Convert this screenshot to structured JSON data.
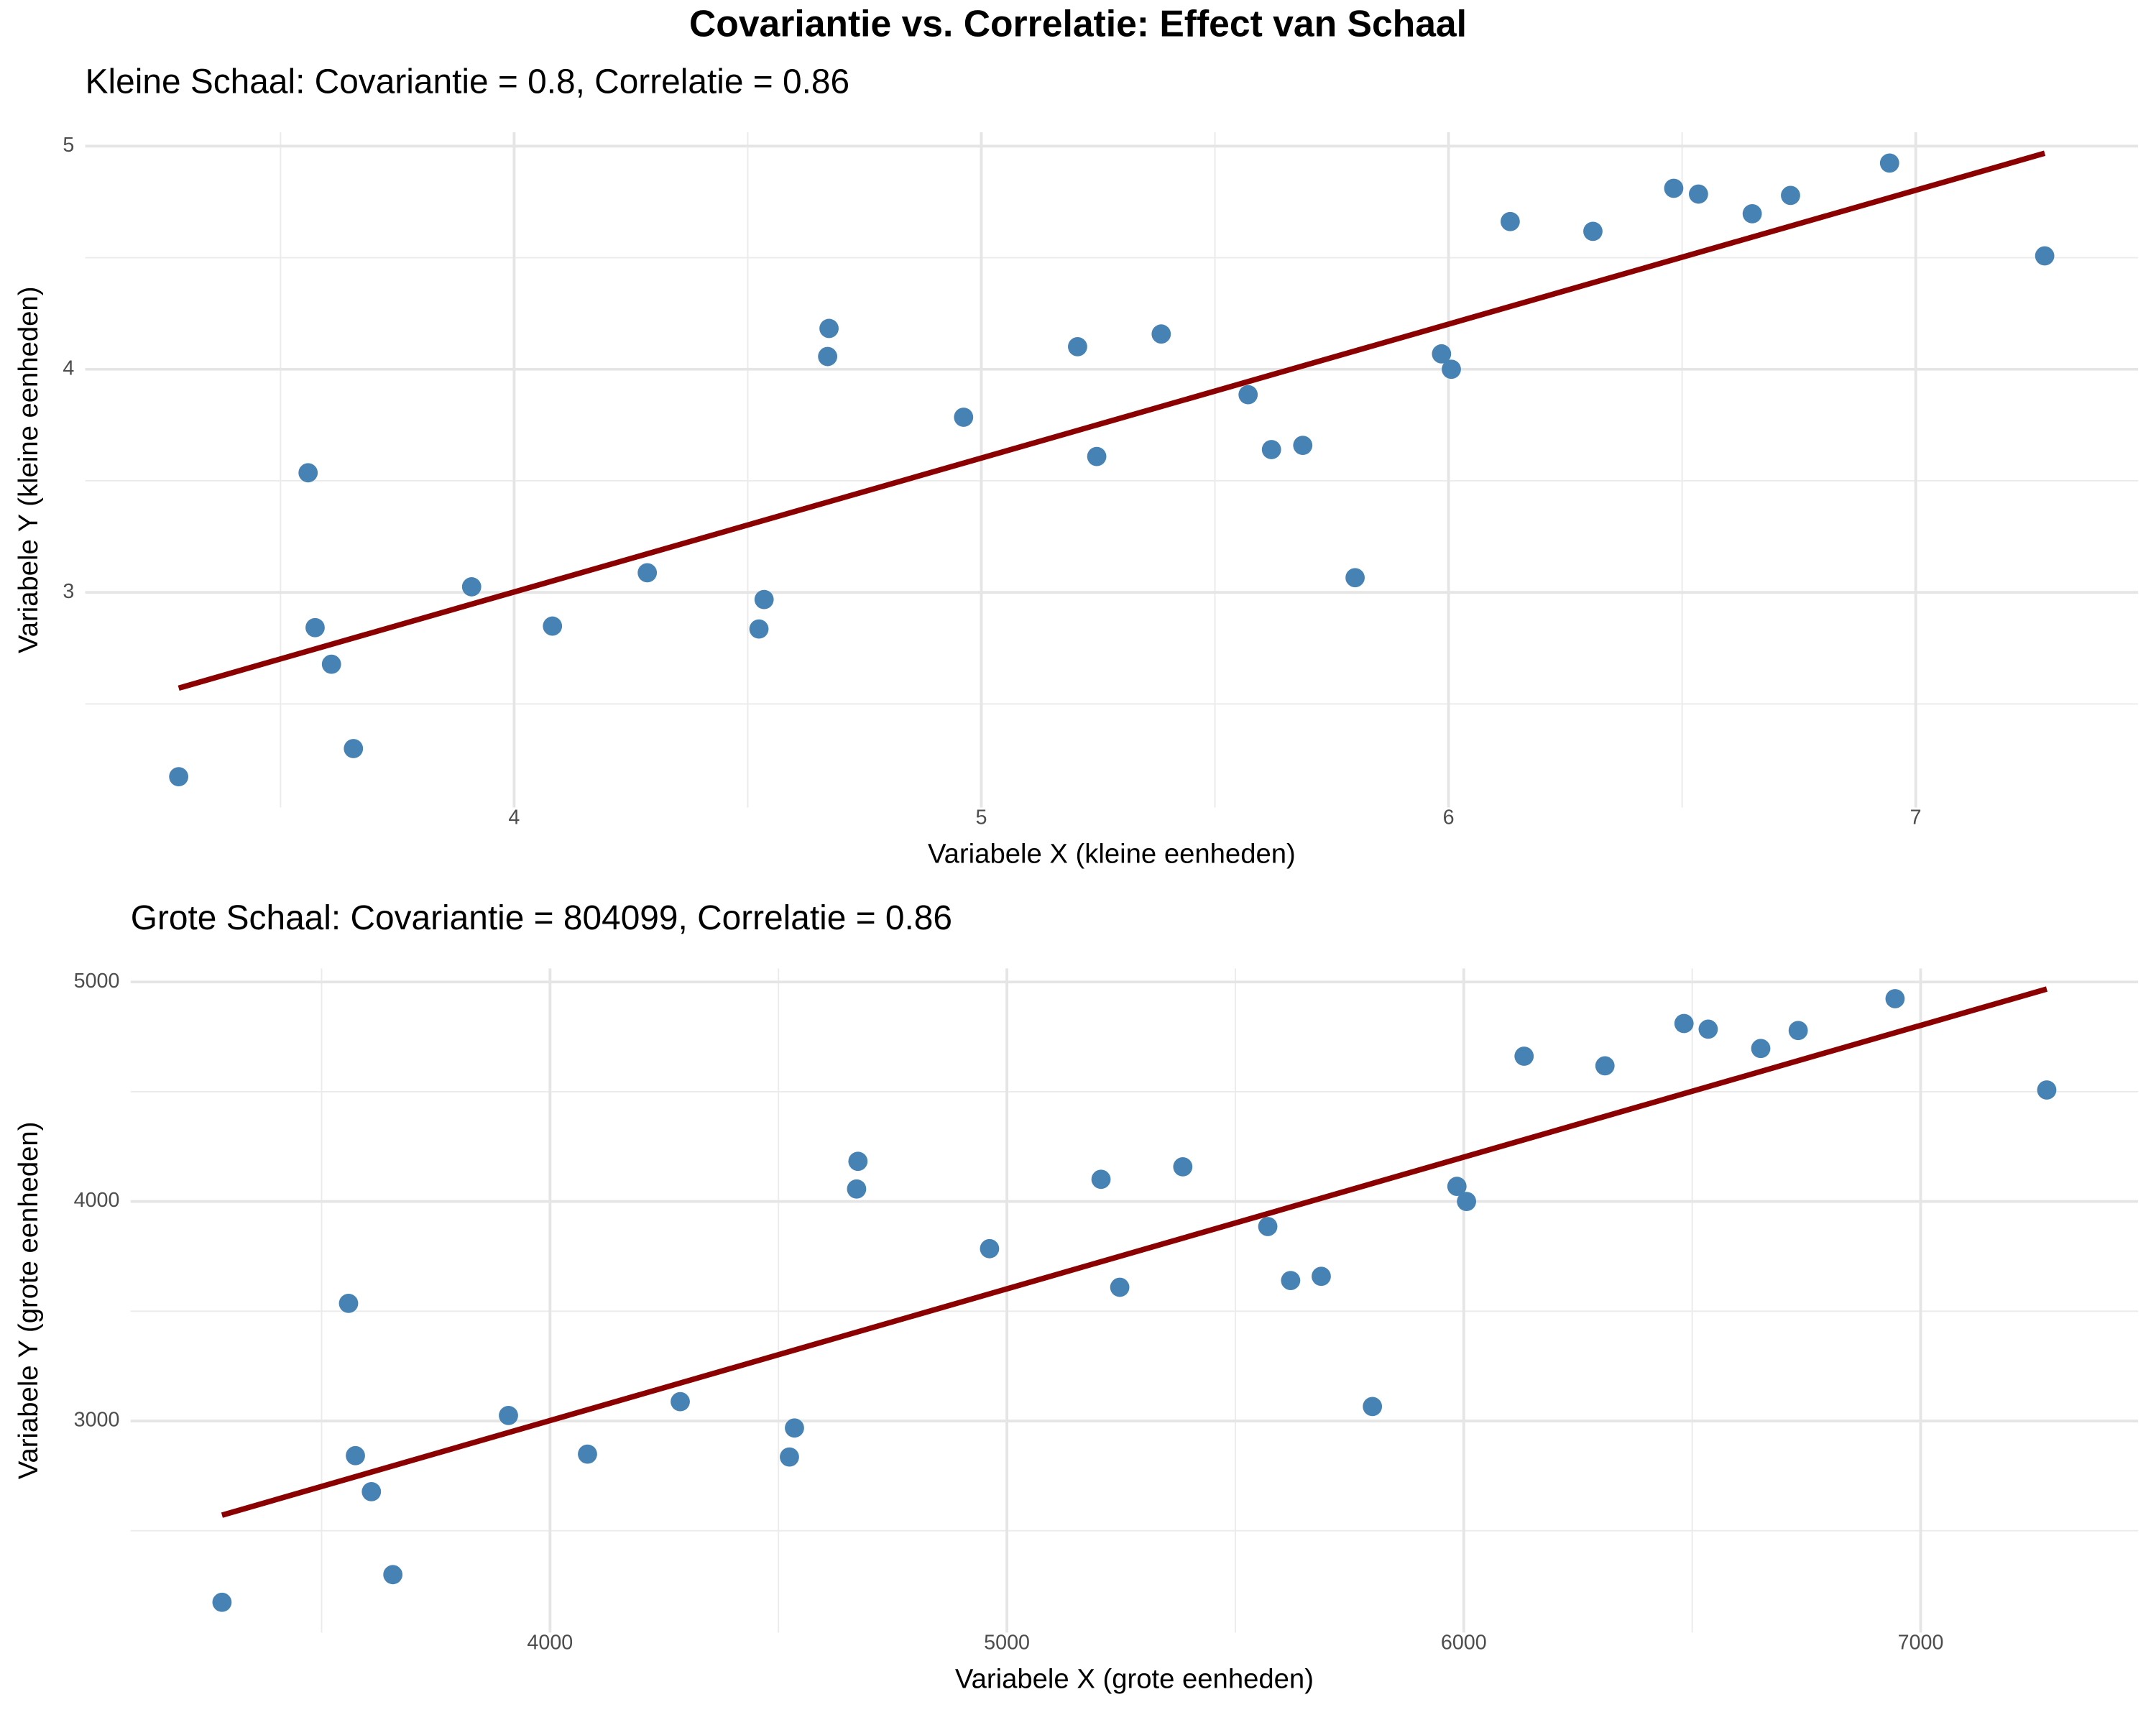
{
  "title": "Covariantie vs. Correlatie: Effect van Schaal",
  "chart_data": [
    {
      "type": "scatter",
      "subtitle": "Kleine Schaal: Covariantie = 0.8, Correlatie = 0.86",
      "x_label": "Variabele X (kleine eenheden)",
      "y_label": "Variabele Y (kleine eenheden)",
      "x": [
        3.282,
        3.559,
        3.574,
        3.609,
        3.656,
        3.909,
        4.082,
        4.285,
        4.524,
        4.535,
        4.671,
        4.674,
        4.962,
        5.206,
        5.247,
        5.385,
        5.571,
        5.621,
        5.688,
        5.8,
        5.985,
        6.006,
        6.132,
        6.309,
        6.482,
        6.535,
        6.65,
        6.732,
        6.944,
        7.276
      ],
      "y": [
        2.174,
        3.536,
        2.842,
        2.678,
        2.3,
        3.025,
        2.849,
        3.088,
        2.836,
        2.968,
        4.057,
        4.183,
        3.785,
        4.101,
        3.609,
        4.158,
        3.886,
        3.64,
        3.659,
        3.066,
        4.069,
        4.0,
        4.662,
        4.618,
        4.811,
        4.785,
        4.697,
        4.779,
        4.924,
        4.508
      ],
      "color": "#4682b4",
      "fit_line": {
        "x": [
          3.282,
          7.276
        ],
        "y": [
          2.571,
          4.968
        ],
        "color": "#8b0000"
      },
      "xlim": [
        3.082,
        7.476
      ],
      "ylim": [
        2.036,
        5.062
      ],
      "xticks": [
        4,
        5,
        6,
        7
      ],
      "yticks": [
        3,
        4,
        5
      ],
      "minor_grid_x": [
        3.5,
        4.5,
        5.5,
        6.5
      ],
      "minor_grid_y": [
        2.5,
        3.5,
        4.5
      ],
      "grid": true
    },
    {
      "type": "scatter",
      "subtitle": "Grote Schaal: Covariantie = 804099, Correlatie = 0.86",
      "x_label": "Variabele X (grote eenheden)",
      "y_label": "Variabele Y (grote eenheden)",
      "x": [
        3282,
        3559,
        3574,
        3609,
        3656,
        3909,
        4082,
        4285,
        4524,
        4535,
        4671,
        4674,
        4962,
        5206,
        5247,
        5385,
        5571,
        5621,
        5688,
        5800,
        5985,
        6006,
        6132,
        6309,
        6482,
        6535,
        6650,
        6732,
        6944,
        7276
      ],
      "y": [
        2174,
        3536,
        2842,
        2678,
        2300,
        3025,
        2849,
        3088,
        2836,
        2968,
        4057,
        4183,
        3785,
        4101,
        3609,
        4158,
        3886,
        3640,
        3659,
        3066,
        4069,
        4000,
        4662,
        4618,
        4811,
        4785,
        4697,
        4779,
        4924,
        4508
      ],
      "color": "#4682b4",
      "fit_line": {
        "x": [
          3282,
          7276
        ],
        "y": [
          2571,
          4968
        ],
        "color": "#8b0000"
      },
      "xlim": [
        3082,
        7476
      ],
      "ylim": [
        2036,
        5062
      ],
      "xticks": [
        4000,
        5000,
        6000,
        7000
      ],
      "yticks": [
        3000,
        4000,
        5000
      ],
      "minor_grid_x": [
        3500,
        4500,
        5500,
        6500
      ],
      "minor_grid_y": [
        2500,
        3500,
        4500
      ],
      "grid": true
    }
  ]
}
